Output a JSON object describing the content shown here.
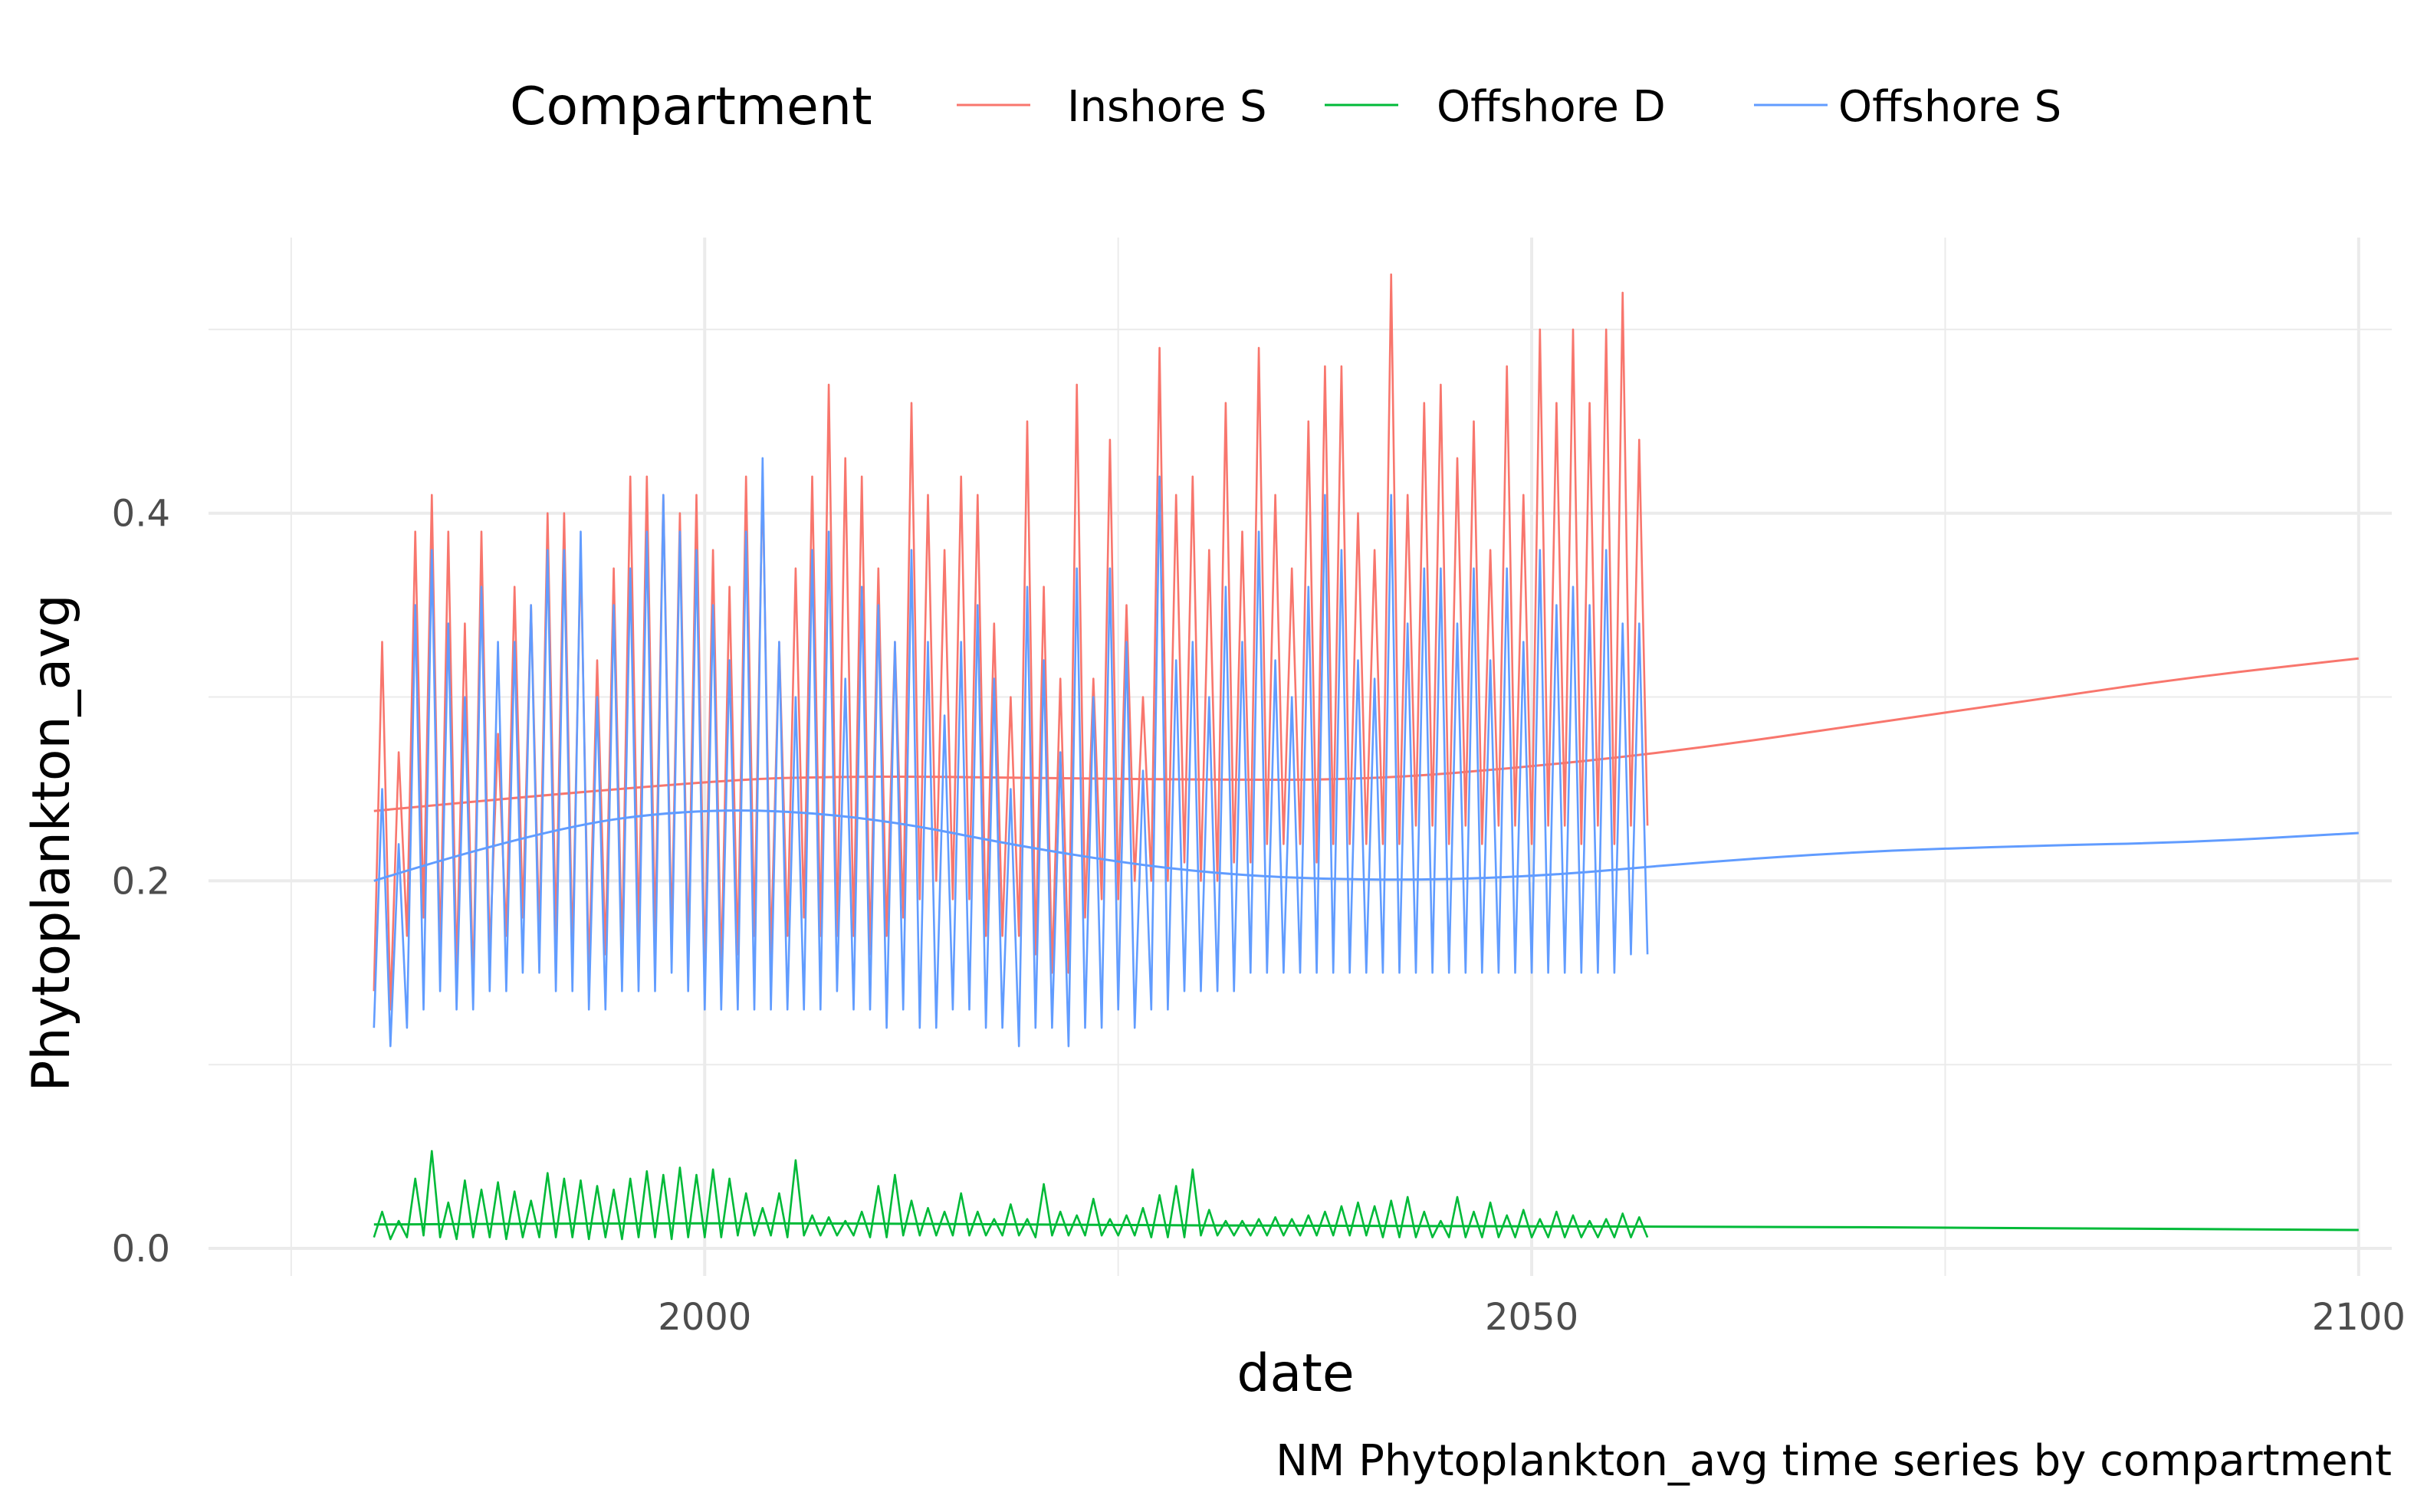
{
  "chart_data": {
    "type": "line",
    "title": "",
    "caption": "NM Phytoplankton_avg time series by compartment",
    "xlabel": "date",
    "ylabel": "Phytoplankton_avg",
    "xlim": [
      1970,
      2102
    ],
    "ylim": [
      -0.015,
      0.55
    ],
    "x_ticks": [
      2000,
      2050,
      2100
    ],
    "y_ticks": [
      0.0,
      0.2,
      0.4
    ],
    "x_tick_labels": [
      "2000",
      "2050",
      "2100"
    ],
    "y_tick_labels": [
      "0.0",
      "0.2",
      "0.4"
    ],
    "grid": true,
    "legend": {
      "title": "Compartment",
      "position": "top"
    },
    "series": [
      {
        "name": "Inshore S",
        "color": "#F8766D",
        "x_start": 1980.0,
        "x_step": 0.5,
        "peaks": [
          0.33,
          0.27,
          0.39,
          0.41,
          0.39,
          0.34,
          0.39,
          0.28,
          0.36,
          0.35,
          0.4,
          0.4,
          0.38,
          0.32,
          0.37,
          0.42,
          0.42,
          0.41,
          0.4,
          0.41,
          0.38,
          0.36,
          0.42,
          0.42,
          0.33,
          0.37,
          0.42,
          0.47,
          0.43,
          0.42,
          0.37,
          0.33,
          0.46,
          0.41,
          0.38,
          0.42,
          0.41,
          0.34,
          0.3,
          0.45,
          0.36,
          0.31,
          0.47,
          0.31,
          0.44,
          0.35,
          0.3,
          0.49,
          0.41,
          0.42,
          0.38,
          0.46,
          0.39,
          0.49,
          0.41,
          0.37,
          0.45,
          0.48,
          0.48,
          0.4,
          0.38,
          0.53,
          0.41,
          0.46,
          0.47,
          0.43,
          0.45,
          0.38,
          0.48,
          0.41,
          0.5,
          0.46,
          0.5,
          0.46,
          0.5,
          0.52,
          0.44
        ],
        "troughs": [
          0.14,
          0.13,
          0.17,
          0.18,
          0.16,
          0.15,
          0.14,
          0.16,
          0.17,
          0.18,
          0.17,
          0.17,
          0.16,
          0.15,
          0.16,
          0.16,
          0.17,
          0.17,
          0.17,
          0.16,
          0.15,
          0.15,
          0.16,
          0.17,
          0.16,
          0.17,
          0.18,
          0.17,
          0.17,
          0.17,
          0.16,
          0.17,
          0.18,
          0.19,
          0.2,
          0.19,
          0.19,
          0.17,
          0.17,
          0.17,
          0.16,
          0.15,
          0.15,
          0.18,
          0.19,
          0.19,
          0.2,
          0.2,
          0.2,
          0.21,
          0.2,
          0.2,
          0.21,
          0.21,
          0.22,
          0.22,
          0.22,
          0.21,
          0.22,
          0.22,
          0.22,
          0.22,
          0.22,
          0.23,
          0.23,
          0.22,
          0.23,
          0.22,
          0.23,
          0.23,
          0.22,
          0.23,
          0.23,
          0.22,
          0.23,
          0.22,
          0.23
        ],
        "trend_x": [
          1980,
          2000,
          2010,
          2020,
          2030,
          2040,
          2050,
          2060,
          2070,
          2080,
          2090,
          2100
        ],
        "trend_y": [
          0.238,
          0.255,
          0.257,
          0.256,
          0.255,
          0.255,
          0.262,
          0.272,
          0.285,
          0.298,
          0.311,
          0.321
        ]
      },
      {
        "name": "Offshore D",
        "color": "#00BA38",
        "x_start": 1980.0,
        "x_step": 0.5,
        "peaks": [
          0.02,
          0.015,
          0.038,
          0.053,
          0.025,
          0.037,
          0.032,
          0.036,
          0.031,
          0.026,
          0.041,
          0.038,
          0.037,
          0.034,
          0.032,
          0.038,
          0.042,
          0.04,
          0.044,
          0.04,
          0.043,
          0.038,
          0.03,
          0.022,
          0.03,
          0.048,
          0.018,
          0.017,
          0.015,
          0.02,
          0.034,
          0.04,
          0.026,
          0.022,
          0.02,
          0.03,
          0.02,
          0.016,
          0.024,
          0.016,
          0.035,
          0.02,
          0.018,
          0.027,
          0.016,
          0.018,
          0.022,
          0.029,
          0.034,
          0.043,
          0.021,
          0.015,
          0.015,
          0.016,
          0.017,
          0.016,
          0.018,
          0.02,
          0.023,
          0.025,
          0.023,
          0.026,
          0.028,
          0.02,
          0.015,
          0.028,
          0.02,
          0.025,
          0.018,
          0.021,
          0.016,
          0.02,
          0.018,
          0.015,
          0.016,
          0.019,
          0.017
        ],
        "troughs": [
          0.006,
          0.005,
          0.006,
          0.007,
          0.006,
          0.005,
          0.006,
          0.006,
          0.005,
          0.006,
          0.006,
          0.006,
          0.006,
          0.005,
          0.006,
          0.005,
          0.006,
          0.006,
          0.005,
          0.006,
          0.006,
          0.006,
          0.007,
          0.007,
          0.007,
          0.006,
          0.007,
          0.007,
          0.007,
          0.007,
          0.006,
          0.006,
          0.007,
          0.007,
          0.007,
          0.007,
          0.007,
          0.007,
          0.007,
          0.007,
          0.006,
          0.007,
          0.007,
          0.007,
          0.007,
          0.007,
          0.007,
          0.006,
          0.006,
          0.006,
          0.007,
          0.007,
          0.007,
          0.007,
          0.007,
          0.007,
          0.007,
          0.007,
          0.007,
          0.007,
          0.007,
          0.006,
          0.006,
          0.006,
          0.006,
          0.006,
          0.006,
          0.006,
          0.006,
          0.006,
          0.006,
          0.006,
          0.006,
          0.006,
          0.006,
          0.006,
          0.006
        ],
        "trend_x": [
          1980,
          2000,
          2020,
          2040,
          2060,
          2080,
          2100
        ],
        "trend_y": [
          0.013,
          0.014,
          0.013,
          0.012,
          0.012,
          0.011,
          0.01
        ]
      },
      {
        "name": "Offshore S",
        "color": "#619CFF",
        "x_start": 1980.0,
        "x_step": 0.5,
        "peaks": [
          0.25,
          0.22,
          0.35,
          0.38,
          0.34,
          0.3,
          0.36,
          0.33,
          0.33,
          0.35,
          0.38,
          0.38,
          0.39,
          0.3,
          0.35,
          0.37,
          0.39,
          0.41,
          0.39,
          0.38,
          0.35,
          0.32,
          0.39,
          0.43,
          0.33,
          0.3,
          0.38,
          0.39,
          0.31,
          0.36,
          0.35,
          0.33,
          0.38,
          0.33,
          0.29,
          0.33,
          0.35,
          0.31,
          0.25,
          0.36,
          0.32,
          0.27,
          0.37,
          0.3,
          0.37,
          0.33,
          0.26,
          0.42,
          0.32,
          0.33,
          0.3,
          0.36,
          0.33,
          0.39,
          0.32,
          0.3,
          0.36,
          0.41,
          0.38,
          0.32,
          0.31,
          0.41,
          0.34,
          0.37,
          0.37,
          0.34,
          0.37,
          0.32,
          0.37,
          0.33,
          0.38,
          0.35,
          0.36,
          0.35,
          0.38,
          0.34,
          0.34
        ],
        "troughs": [
          0.12,
          0.11,
          0.12,
          0.13,
          0.14,
          0.13,
          0.13,
          0.14,
          0.14,
          0.15,
          0.15,
          0.14,
          0.14,
          0.13,
          0.13,
          0.14,
          0.14,
          0.14,
          0.15,
          0.14,
          0.13,
          0.13,
          0.13,
          0.13,
          0.13,
          0.13,
          0.13,
          0.13,
          0.14,
          0.13,
          0.13,
          0.12,
          0.13,
          0.12,
          0.12,
          0.13,
          0.13,
          0.12,
          0.12,
          0.11,
          0.12,
          0.12,
          0.11,
          0.12,
          0.12,
          0.13,
          0.12,
          0.13,
          0.13,
          0.14,
          0.14,
          0.14,
          0.14,
          0.15,
          0.15,
          0.15,
          0.15,
          0.15,
          0.15,
          0.15,
          0.15,
          0.15,
          0.15,
          0.15,
          0.15,
          0.15,
          0.15,
          0.15,
          0.15,
          0.15,
          0.15,
          0.15,
          0.15,
          0.15,
          0.15,
          0.15,
          0.16
        ],
        "trend_x": [
          1980,
          1990,
          2000,
          2010,
          2020,
          2030,
          2040,
          2050,
          2060,
          2070,
          2080,
          2090,
          2100
        ],
        "trend_y": [
          0.2,
          0.228,
          0.24,
          0.235,
          0.217,
          0.204,
          0.2,
          0.202,
          0.21,
          0.216,
          0.219,
          0.221,
          0.226
        ]
      }
    ]
  }
}
